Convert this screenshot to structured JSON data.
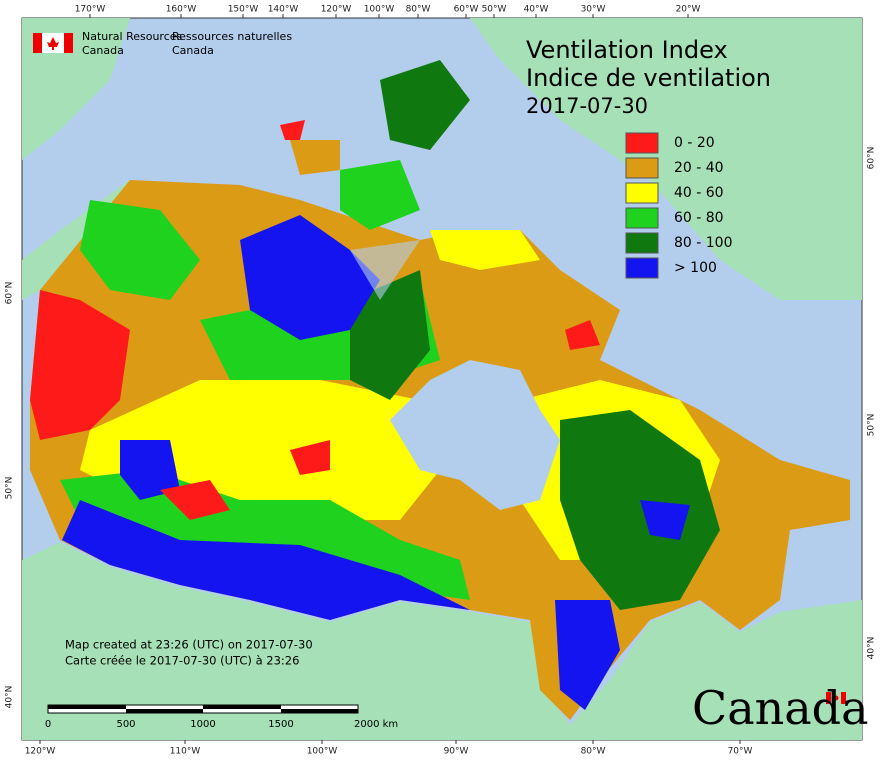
{
  "header": {
    "agency_en": [
      "Natural Resources",
      "Canada"
    ],
    "agency_fr": [
      "Ressources naturelles",
      "Canada"
    ]
  },
  "title": [
    "Ventilation Index",
    "Indice de ventilation",
    "2017-07-30"
  ],
  "legend": [
    {
      "label": "0 - 20",
      "color": "#ff1a1a"
    },
    {
      "label": "20 - 40",
      "color": "#dc9b14"
    },
    {
      "label": "40 - 60",
      "color": "#ffff00"
    },
    {
      "label": "60 - 80",
      "color": "#1ed21e"
    },
    {
      "label": "80 - 100",
      "color": "#0f780f"
    },
    {
      "label": "> 100",
      "color": "#1414f0"
    }
  ],
  "graticule": {
    "top": [
      "170°W",
      "160°W",
      "150°W",
      "140°W",
      "120°W",
      "100°W",
      "80°W",
      "60°W",
      "50°W",
      "40°W",
      "30°W",
      "20°W"
    ],
    "bottom": [
      "120°W",
      "110°W",
      "100°W",
      "90°W",
      "80°W",
      "70°W"
    ],
    "left": [
      "60°N",
      "50°N",
      "40°N"
    ],
    "right": [
      "60°N",
      "50°N",
      "40°N"
    ]
  },
  "credits": [
    "Map created at 23:26 (UTC) on 2017-07-30",
    "Carte créée le 2017-07-30 (UTC) à 23:26"
  ],
  "scale": [
    "0",
    "500",
    "1000",
    "1500",
    "2000 km"
  ],
  "wordmark": "Canada"
}
